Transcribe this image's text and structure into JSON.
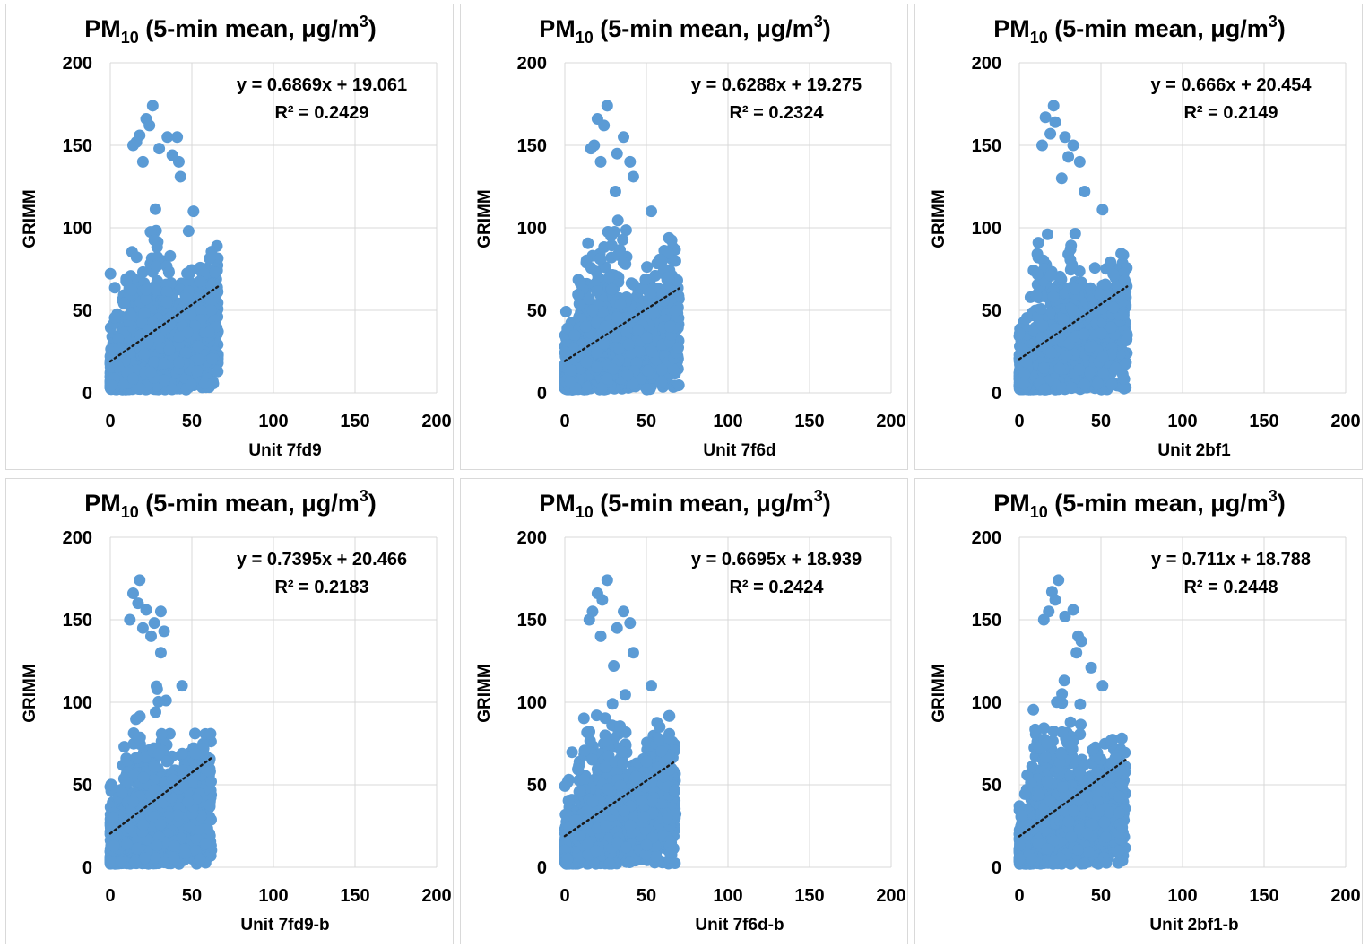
{
  "figure": {
    "title_main": "PM",
    "title_sub": "10",
    "title_rest": " (5-min mean, μg/m",
    "title_sup": "3",
    "title_close": ")",
    "ylabel": "GRIMM",
    "xticks": [
      "0",
      "50",
      "100",
      "150",
      "200"
    ],
    "yticks": [
      "0",
      "50",
      "100",
      "150",
      "200"
    ],
    "colors": {
      "points": "#5b9bd5",
      "trendline": "#1a1a1a",
      "grid": "#d9d9d9",
      "text": "#000000"
    }
  },
  "chart_data": [
    {
      "type": "scatter",
      "title": "PM10 (5-min mean, μg/m3)",
      "xlabel": "Unit 7fd9",
      "ylabel": "GRIMM",
      "xlim": [
        0,
        200
      ],
      "ylim": [
        0,
        200
      ],
      "grid": true,
      "equation": "y = 0.6869x + 19.061",
      "r2": "R² = 0.2429",
      "trendline": {
        "slope": 0.6869,
        "intercept": 19.061,
        "x_range": [
          0,
          66
        ]
      },
      "cloud": {
        "x_max": 66,
        "seed": 11
      },
      "outliers": [
        [
          26,
          174
        ],
        [
          22,
          166
        ],
        [
          24,
          162
        ],
        [
          18,
          156
        ],
        [
          30,
          148
        ],
        [
          35,
          155
        ],
        [
          41,
          155
        ],
        [
          42,
          140
        ],
        [
          38,
          144
        ],
        [
          43,
          131
        ],
        [
          51,
          110
        ],
        [
          48,
          98
        ],
        [
          16,
          152
        ],
        [
          20,
          140
        ],
        [
          14,
          150
        ]
      ]
    },
    {
      "type": "scatter",
      "title": "PM10 (5-min mean, μg/m3)",
      "xlabel": "Unit 7f6d",
      "ylabel": "GRIMM",
      "xlim": [
        0,
        200
      ],
      "ylim": [
        0,
        200
      ],
      "grid": true,
      "equation": "y = 0.6288x + 19.275",
      "r2": "R² = 0.2324",
      "trendline": {
        "slope": 0.6288,
        "intercept": 19.275,
        "x_range": [
          0,
          70
        ]
      },
      "cloud": {
        "x_max": 70,
        "seed": 23
      },
      "outliers": [
        [
          26,
          174
        ],
        [
          20,
          166
        ],
        [
          24,
          162
        ],
        [
          18,
          150
        ],
        [
          32,
          145
        ],
        [
          36,
          155
        ],
        [
          40,
          140
        ],
        [
          42,
          131
        ],
        [
          31,
          122
        ],
        [
          53,
          110
        ],
        [
          16,
          148
        ],
        [
          22,
          140
        ]
      ]
    },
    {
      "type": "scatter",
      "title": "PM10 (5-min mean, μg/m3)",
      "xlabel": "Unit 2bf1",
      "ylabel": "GRIMM",
      "xlim": [
        0,
        200
      ],
      "ylim": [
        0,
        200
      ],
      "grid": true,
      "equation": "y = 0.666x + 20.454",
      "r2": "R² = 0.2149",
      "trendline": {
        "slope": 0.666,
        "intercept": 20.454,
        "x_range": [
          0,
          66
        ]
      },
      "cloud": {
        "x_max": 66,
        "seed": 37
      },
      "outliers": [
        [
          21,
          174
        ],
        [
          16,
          167
        ],
        [
          22,
          164
        ],
        [
          19,
          157
        ],
        [
          28,
          155
        ],
        [
          33,
          150
        ],
        [
          30,
          143
        ],
        [
          37,
          140
        ],
        [
          26,
          130
        ],
        [
          40,
          122
        ],
        [
          51,
          111
        ],
        [
          14,
          150
        ]
      ]
    },
    {
      "type": "scatter",
      "title": "PM10 (5-min mean, μg/m3)",
      "xlabel": "Unit 7fd9-b",
      "ylabel": "GRIMM",
      "xlim": [
        0,
        200
      ],
      "ylim": [
        0,
        200
      ],
      "grid": true,
      "equation": "y = 0.7395x + 20.466",
      "r2": "R² = 0.2183",
      "trendline": {
        "slope": 0.7395,
        "intercept": 20.466,
        "x_range": [
          0,
          62
        ]
      },
      "cloud": {
        "x_max": 62,
        "seed": 51
      },
      "outliers": [
        [
          18,
          174
        ],
        [
          14,
          166
        ],
        [
          17,
          160
        ],
        [
          22,
          156
        ],
        [
          31,
          155
        ],
        [
          27,
          148
        ],
        [
          25,
          140
        ],
        [
          33,
          143
        ],
        [
          31,
          130
        ],
        [
          44,
          110
        ],
        [
          12,
          150
        ],
        [
          20,
          145
        ]
      ]
    },
    {
      "type": "scatter",
      "title": "PM10 (5-min mean, μg/m3)",
      "xlabel": "Unit 7f6d-b",
      "ylabel": "GRIMM",
      "xlim": [
        0,
        200
      ],
      "ylim": [
        0,
        200
      ],
      "grid": true,
      "equation": "y = 0.6695x + 18.939",
      "r2": "R² = 0.2424",
      "trendline": {
        "slope": 0.6695,
        "intercept": 18.939,
        "x_range": [
          0,
          68
        ]
      },
      "cloud": {
        "x_max": 68,
        "seed": 67
      },
      "outliers": [
        [
          26,
          174
        ],
        [
          20,
          166
        ],
        [
          23,
          162
        ],
        [
          17,
          155
        ],
        [
          32,
          145
        ],
        [
          36,
          155
        ],
        [
          40,
          148
        ],
        [
          42,
          130
        ],
        [
          30,
          122
        ],
        [
          53,
          110
        ],
        [
          15,
          150
        ],
        [
          22,
          140
        ]
      ]
    },
    {
      "type": "scatter",
      "title": "PM10 (5-min mean, μg/m3)",
      "xlabel": "Unit 2bf1-b",
      "ylabel": "GRIMM",
      "xlim": [
        0,
        200
      ],
      "ylim": [
        0,
        200
      ],
      "grid": true,
      "equation": "y = 0.711x + 18.788",
      "r2": "R² = 0.2448",
      "trendline": {
        "slope": 0.711,
        "intercept": 18.788,
        "x_range": [
          0,
          65
        ]
      },
      "cloud": {
        "x_max": 65,
        "seed": 83
      },
      "outliers": [
        [
          24,
          174
        ],
        [
          20,
          167
        ],
        [
          22,
          162
        ],
        [
          18,
          155
        ],
        [
          28,
          152
        ],
        [
          33,
          156
        ],
        [
          36,
          140
        ],
        [
          38,
          137
        ],
        [
          35,
          130
        ],
        [
          44,
          121
        ],
        [
          51,
          110
        ],
        [
          15,
          150
        ]
      ]
    }
  ]
}
